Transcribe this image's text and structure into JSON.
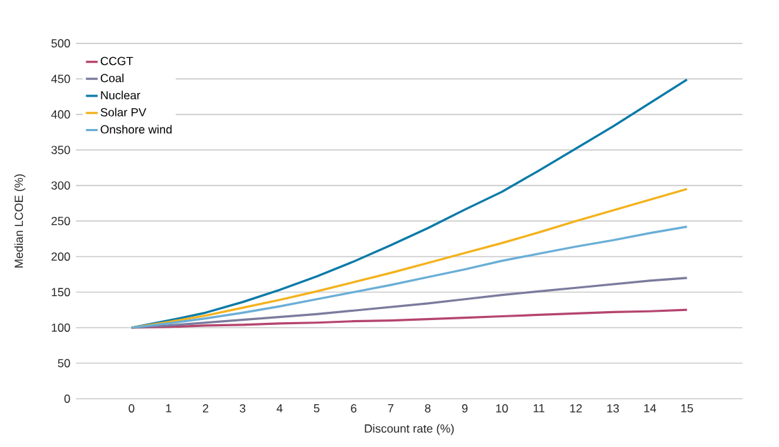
{
  "chart_data": {
    "type": "line",
    "xlabel": "Discount rate (%)",
    "ylabel": "Median LCOE (%)",
    "x": [
      0,
      1,
      2,
      3,
      4,
      5,
      6,
      7,
      8,
      9,
      10,
      11,
      12,
      13,
      14,
      15
    ],
    "series": [
      {
        "name": "CCGT",
        "color": "#b5446e",
        "values": [
          100,
          101,
          103,
          104,
          106,
          107,
          109,
          110,
          112,
          114,
          116,
          118,
          120,
          122,
          123,
          125
        ]
      },
      {
        "name": "Coal",
        "color": "#7b7b9d",
        "values": [
          100,
          103,
          107,
          111,
          115,
          119,
          124,
          129,
          134,
          140,
          146,
          151,
          156,
          161,
          166,
          170
        ]
      },
      {
        "name": "Nuclear",
        "color": "#0a7aa8",
        "values": [
          100,
          110,
          121,
          136,
          153,
          172,
          193,
          216,
          240,
          266,
          291,
          321,
          352,
          383,
          416,
          449
        ]
      },
      {
        "name": "Solar PV",
        "color": "#f3b21c",
        "values": [
          100,
          108,
          117,
          128,
          139,
          151,
          164,
          177,
          191,
          205,
          219,
          234,
          250,
          265,
          280,
          295
        ]
      },
      {
        "name": "Onshore wind",
        "color": "#6aaed6",
        "values": [
          100,
          106,
          113,
          121,
          130,
          140,
          150,
          160,
          171,
          182,
          194,
          204,
          214,
          223,
          233,
          242
        ]
      }
    ],
    "xlim": [
      -1.5,
      16.5
    ],
    "xticks": [
      0,
      1,
      2,
      3,
      4,
      5,
      6,
      7,
      8,
      9,
      10,
      11,
      12,
      13,
      14,
      15
    ],
    "ylim": [
      0,
      500
    ],
    "yticks": [
      0,
      50,
      100,
      150,
      200,
      250,
      300,
      350,
      400,
      450,
      500
    ],
    "grid": "y",
    "legend": "top left",
    "marker": "none",
    "line_style": "solid"
  }
}
